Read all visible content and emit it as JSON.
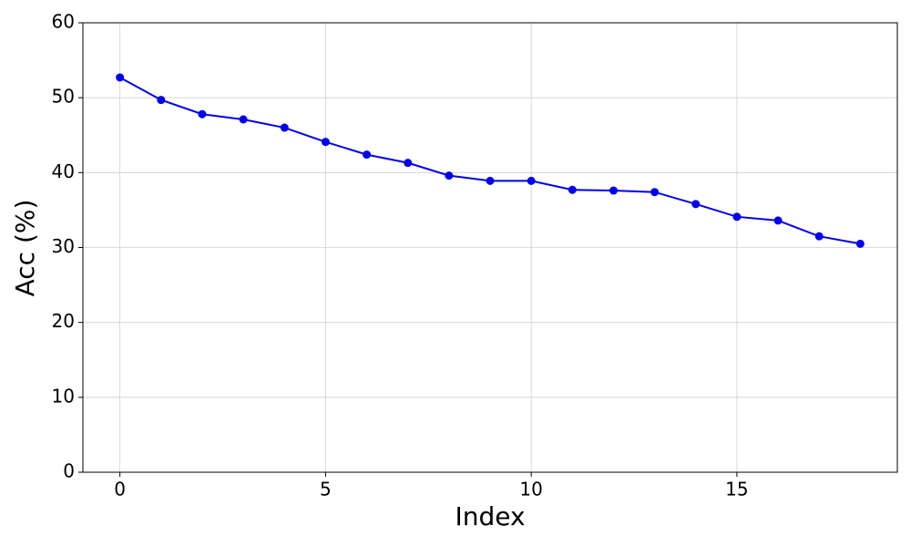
{
  "chart_data": {
    "type": "line",
    "xlabel": "Index",
    "ylabel": "Acc (%)",
    "x": [
      0,
      1,
      2,
      3,
      4,
      5,
      6,
      7,
      8,
      9,
      10,
      11,
      12,
      13,
      14,
      15,
      16,
      17,
      18
    ],
    "values": [
      52.7,
      49.7,
      47.8,
      47.1,
      46.0,
      44.1,
      42.4,
      41.3,
      39.6,
      38.9,
      38.9,
      37.7,
      37.6,
      37.4,
      35.8,
      34.1,
      33.6,
      31.5,
      30.5
    ],
    "color": "#0000ee",
    "xlim": [
      -0.9,
      18.9
    ],
    "xticks": [
      0,
      5,
      10,
      15
    ],
    "ylim": [
      0,
      60
    ],
    "yticks": [
      0,
      10,
      20,
      30,
      40,
      50,
      60
    ],
    "grid": true
  }
}
